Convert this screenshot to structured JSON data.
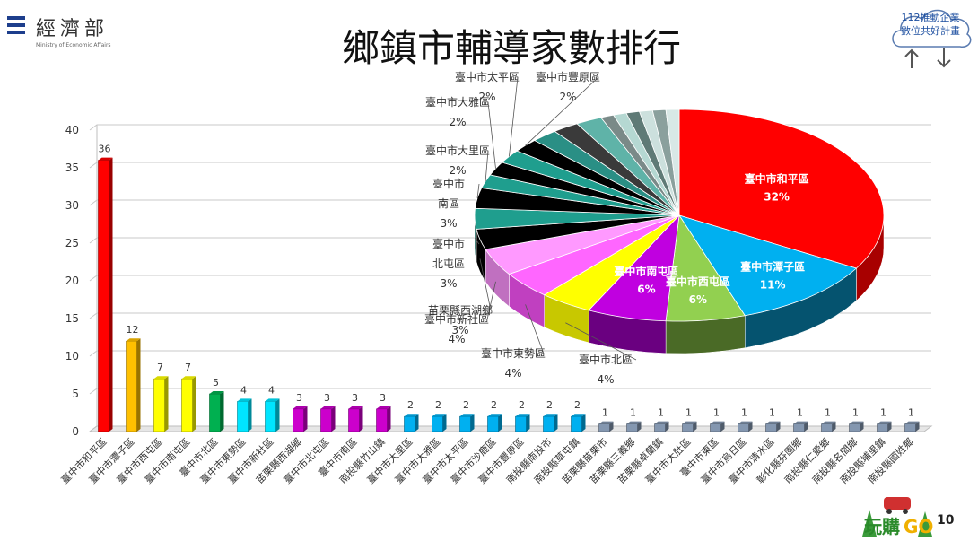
{
  "header": {
    "logo_cn": "經濟部",
    "logo_en": "Ministry of Economic Affairs",
    "title": "鄉鎮市輔導家數排行",
    "badge_line1": "112推動企業",
    "badge_line2": "數位共好計畫",
    "page_number": "10",
    "brand_text": "中部 玩購GO"
  },
  "chart_data": [
    {
      "type": "bar",
      "ylim": [
        0,
        40
      ],
      "yticks": [
        0,
        5,
        10,
        15,
        20,
        25,
        30,
        35,
        40
      ],
      "grid": true,
      "categories": [
        "臺中市和平區",
        "臺中市潭子區",
        "臺中市西屯區",
        "臺中市南屯區",
        "臺中市北區",
        "臺中市東勢區",
        "臺中市新社區",
        "苗栗縣西湖鄉",
        "臺中市北屯區",
        "臺中市南區",
        "南投縣竹山鎮",
        "臺中市大里區",
        "臺中市大雅區",
        "臺中市太平區",
        "臺中市沙鹿區",
        "臺中市豐原區",
        "南投縣南投市",
        "南投縣草屯鎮",
        "苗栗縣苗栗市",
        "苗栗縣三義鄉",
        "苗栗縣卓蘭鎮",
        "臺中市大肚區",
        "臺中市東區",
        "臺中市烏日區",
        "臺中市清水區",
        "彰化縣芬園鄉",
        "南投縣仁愛鄉",
        "南投縣名間鄉",
        "南投縣埔里鎮",
        "南投縣國姓鄉"
      ],
      "values": [
        36,
        12,
        7,
        7,
        5,
        4,
        4,
        3,
        3,
        3,
        3,
        2,
        2,
        2,
        2,
        2,
        2,
        2,
        1,
        1,
        1,
        1,
        1,
        1,
        1,
        1,
        1,
        1,
        1,
        1
      ],
      "colors": [
        "#ff0000",
        "#ffc000",
        "#ffff00",
        "#ffff00",
        "#00b050",
        "#00e5ff",
        "#00e5ff",
        "#cc00cc",
        "#cc00cc",
        "#cc00cc",
        "#cc00cc",
        "#00b0f0",
        "#00b0f0",
        "#00b0f0",
        "#00b0f0",
        "#00b0f0",
        "#00b0f0",
        "#00b0f0",
        "#8497b0",
        "#8497b0",
        "#8497b0",
        "#8497b0",
        "#8497b0",
        "#8497b0",
        "#8497b0",
        "#8497b0",
        "#8497b0",
        "#8497b0",
        "#8497b0",
        "#8497b0"
      ]
    },
    {
      "type": "pie",
      "slices": [
        {
          "label": "臺中市和平區",
          "label_lines": [
            "臺中市和平區"
          ],
          "value": 32,
          "pct": "32%",
          "color": "#ff0000",
          "side": "#a80000"
        },
        {
          "label": "臺中市潭子區",
          "label_lines": [
            "臺中市潭子區"
          ],
          "value": 11,
          "pct": "11%",
          "color": "#00b0f0",
          "side": "#05536f"
        },
        {
          "label": "臺中市西屯區",
          "label_lines": [
            "臺中市西屯區"
          ],
          "value": 6,
          "pct": "6%",
          "color": "#92d050",
          "side": "#4a6a26"
        },
        {
          "label": "臺中市南屯區",
          "label_lines": [
            "臺中市南屯區"
          ],
          "value": 6,
          "pct": "6%",
          "color": "#c000e0",
          "side": "#6a0080"
        },
        {
          "label": "臺中市北區",
          "label_lines": [
            "臺中市北區"
          ],
          "value": 4,
          "pct": "4%",
          "color": "#ffff00",
          "side": "#c8c800"
        },
        {
          "label": "臺中市東勢區",
          "label_lines": [
            "臺中市東勢區"
          ],
          "value": 4,
          "pct": "4%",
          "color": "#ff66ff",
          "side": "#c040c0"
        },
        {
          "label": "臺中市新社區",
          "label_lines": [
            "臺中市新社區"
          ],
          "value": 4,
          "pct": "4%",
          "color": "#ff99ff",
          "side": "#c070c0"
        },
        {
          "label": "苗栗縣西湖鄉",
          "label_lines": [
            "苗栗縣西湖鄉"
          ],
          "value": 3,
          "pct": "3%",
          "color": "#000000",
          "side": "#000000"
        },
        {
          "label": "臺中市北屯區",
          "label_lines": [
            "臺中市",
            "北屯區"
          ],
          "value": 3,
          "pct": "3%",
          "color": "#1f9e8e",
          "side": "#0d5a50"
        },
        {
          "label": "臺中市南區",
          "label_lines": [
            "臺中市",
            "南區"
          ],
          "value": 3,
          "pct": "3%",
          "color": "#000000",
          "side": "#000000"
        },
        {
          "label": "臺中市大里區",
          "label_lines": [
            "臺中市大里區"
          ],
          "value": 2,
          "pct": "2%",
          "color": "#1f9e8e",
          "side": "#0d5a50"
        },
        {
          "label": "臺中市大雅區",
          "label_lines": [
            "臺中市大雅區"
          ],
          "value": 2,
          "pct": "2%",
          "color": "#000000",
          "side": "#000000"
        },
        {
          "label": "臺中市太平區",
          "label_lines": [
            "臺中市太平區"
          ],
          "value": 2,
          "pct": "2%",
          "color": "#1f9e8e",
          "side": "#0d5a50"
        },
        {
          "label": "臺中市豐原區",
          "label_lines": [
            "臺中市豐原區"
          ],
          "value": 2,
          "pct": "2%",
          "color": "#000000",
          "side": "#000000"
        },
        {
          "label": "",
          "label_lines": [],
          "value": 2,
          "pct": "",
          "color": "#2a8f85",
          "side": "#145048"
        },
        {
          "label": "",
          "label_lines": [],
          "value": 2,
          "pct": "",
          "color": "#3a3a3a",
          "side": "#222222"
        },
        {
          "label": "",
          "label_lines": [],
          "value": 2,
          "pct": "",
          "color": "#5fb3a8",
          "side": "#2f6a62"
        },
        {
          "label": "",
          "label_lines": [],
          "value": 1,
          "pct": "",
          "color": "#7a8a88",
          "side": "#4a5554"
        },
        {
          "label": "",
          "label_lines": [],
          "value": 1,
          "pct": "",
          "color": "#b5d8d2",
          "side": "#6a8580"
        },
        {
          "label": "",
          "label_lines": [],
          "value": 1,
          "pct": "",
          "color": "#5f7a76",
          "side": "#3a4a48"
        },
        {
          "label": "",
          "label_lines": [],
          "value": 1,
          "pct": "",
          "color": "#cce0dd",
          "side": "#7a908c"
        },
        {
          "label": "",
          "label_lines": [],
          "value": 1,
          "pct": "",
          "color": "#8aa09d",
          "side": "#4f5f5c"
        },
        {
          "label": "",
          "label_lines": [],
          "value": 1,
          "pct": "",
          "color": "#d8e8e6",
          "side": "#8aa09c"
        }
      ]
    }
  ]
}
